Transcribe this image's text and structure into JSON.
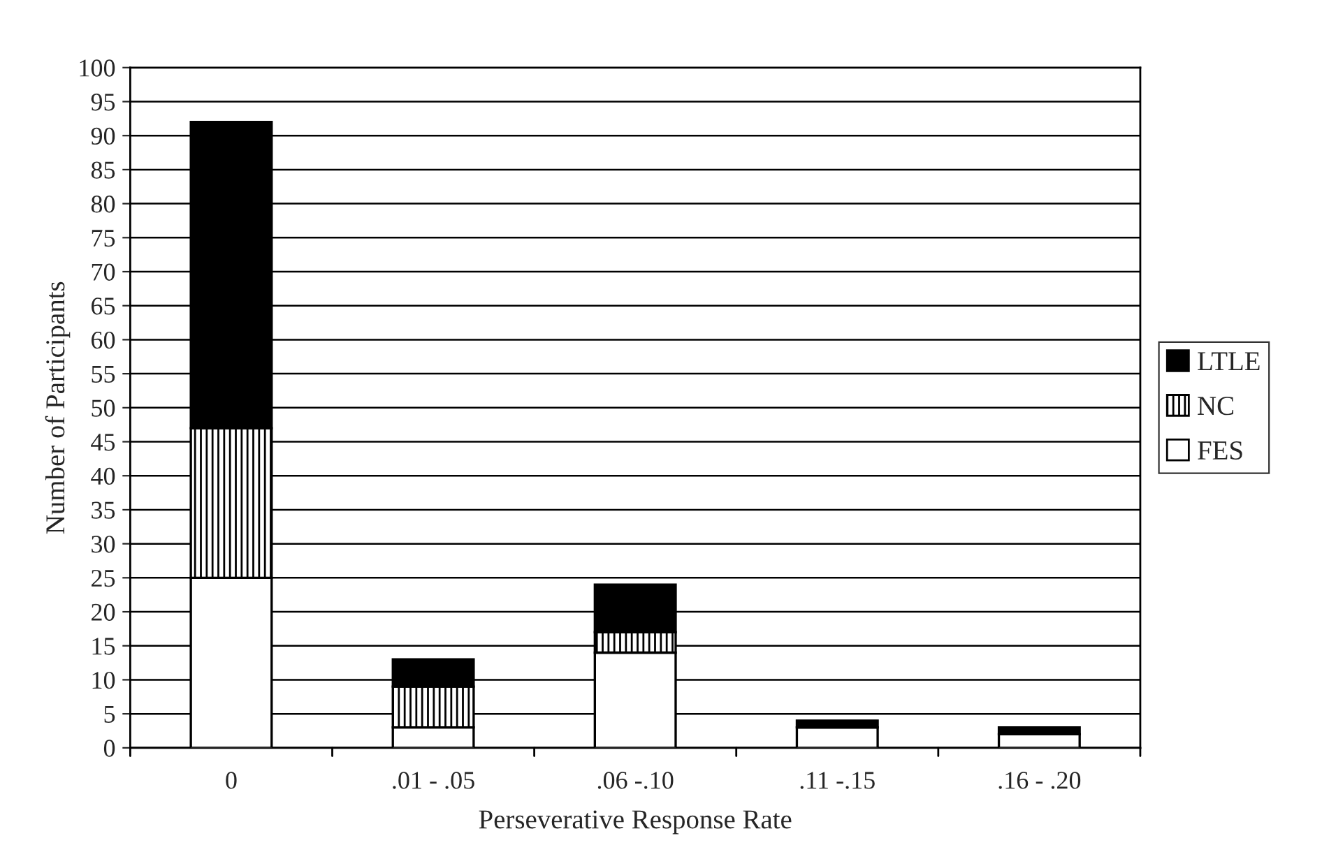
{
  "chart_data": {
    "type": "bar",
    "stacked": true,
    "xlabel": "Perseverative Response Rate",
    "ylabel": "Number of Participants",
    "categories": [
      "0",
      ".01 - .05",
      ".06 -.10",
      ".11 -.15",
      ".16 - .20"
    ],
    "series": [
      {
        "name": "FES",
        "color": "#ffffff",
        "values": [
          25,
          3,
          14,
          3,
          2
        ]
      },
      {
        "name": "NC",
        "color": "#000000",
        "values": [
          22,
          6,
          3,
          0,
          0
        ]
      },
      {
        "name": "LTLE",
        "color": "#000000",
        "values": [
          45,
          4,
          7,
          1,
          1
        ]
      }
    ],
    "ylim": [
      0,
      100
    ],
    "yticks": [
      0,
      5,
      10,
      15,
      20,
      25,
      30,
      35,
      40,
      45,
      50,
      55,
      60,
      65,
      70,
      75,
      80,
      85,
      90,
      95,
      100
    ],
    "grid": "y",
    "legend": "right"
  }
}
